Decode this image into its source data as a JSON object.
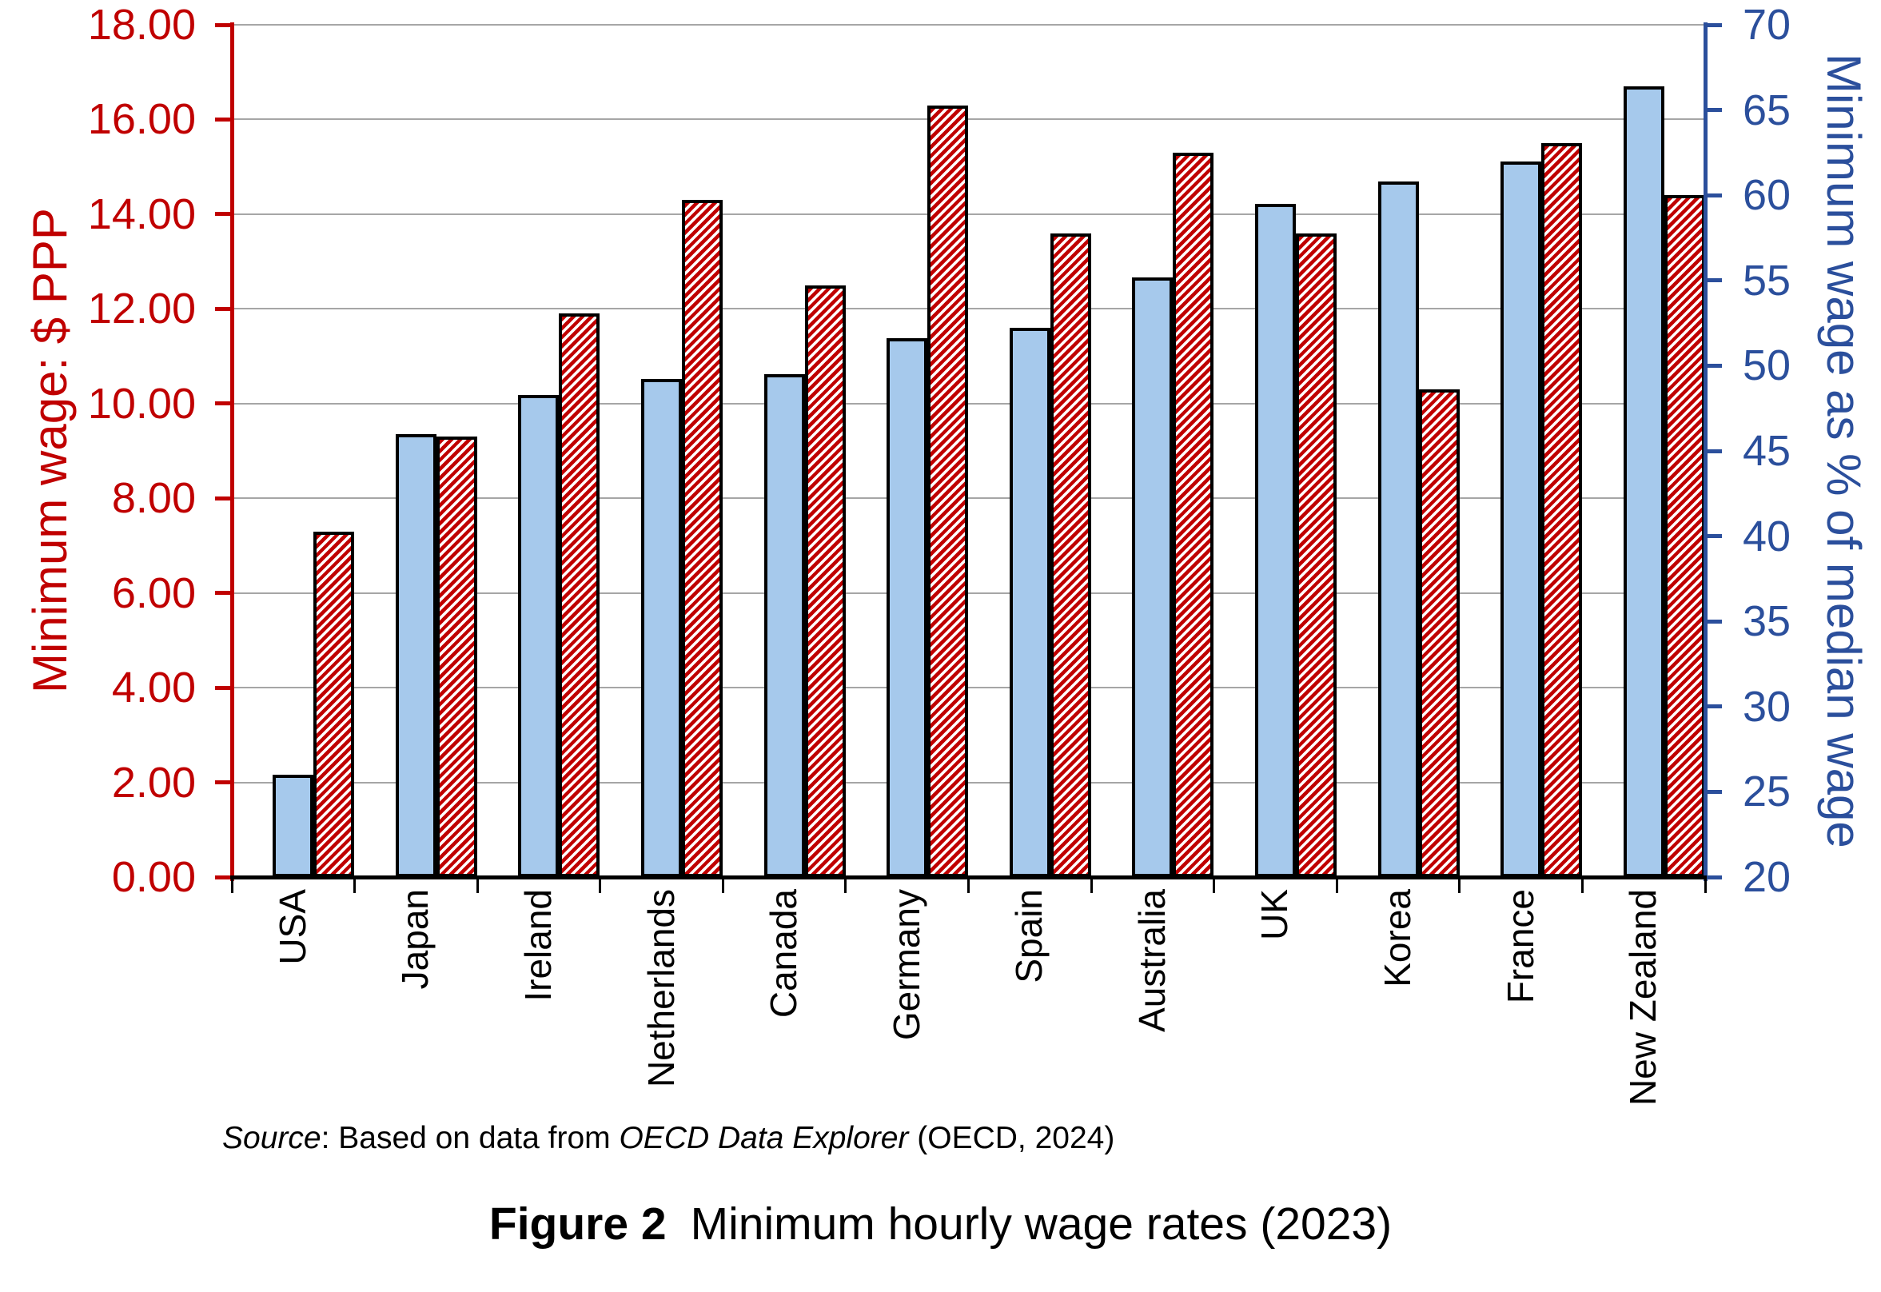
{
  "figure": {
    "caption_label": "Figure 2",
    "caption_text": "Minimum hourly wage rates (2023)",
    "source": {
      "part1_italic": "Source",
      "part2": ": Based on data from ",
      "part3_italic": "OECD Data Explorer",
      "part4": " (OECD, 2024)"
    }
  },
  "chart_data": {
    "type": "bar",
    "categories": [
      "USA",
      "Japan",
      "Ireland",
      "Netherlands",
      "Canada",
      "Germany",
      "Spain",
      "Australia",
      "UK",
      "Korea",
      "France",
      "New Zealand"
    ],
    "series": [
      {
        "name": "Minimum wage as % of median wage",
        "axis": "right",
        "style": "solid-blue",
        "values": [
          26.0,
          46.0,
          48.3,
          49.2,
          49.5,
          51.6,
          52.2,
          55.2,
          59.5,
          60.8,
          62.0,
          66.4
        ]
      },
      {
        "name": "Minimum wage: $ PPP",
        "axis": "left",
        "style": "red-hatch",
        "values": [
          7.3,
          9.3,
          11.9,
          14.3,
          12.5,
          16.3,
          13.6,
          15.3,
          13.6,
          10.3,
          15.5,
          14.4
        ]
      }
    ],
    "left_axis": {
      "title": "Minimum wage: $ PPP",
      "min": 0,
      "max": 18,
      "step": 2,
      "decimals": 2,
      "color": "#C00000"
    },
    "right_axis": {
      "title": "Minimum wage as % of median wage",
      "min": 20,
      "max": 70,
      "step": 5,
      "decimals": 0,
      "color": "#2B4F9C"
    },
    "grid": true,
    "legend_position": "none"
  },
  "colors": {
    "left_axis_red": "#C00000",
    "right_axis_blue": "#2B4F9C",
    "blue_bar_fill": "#A6C9EC",
    "hatch_red": "#C00000",
    "bar_outline": "#000000",
    "gridline_gray": "#A6A6A6",
    "background": "#ffffff"
  }
}
